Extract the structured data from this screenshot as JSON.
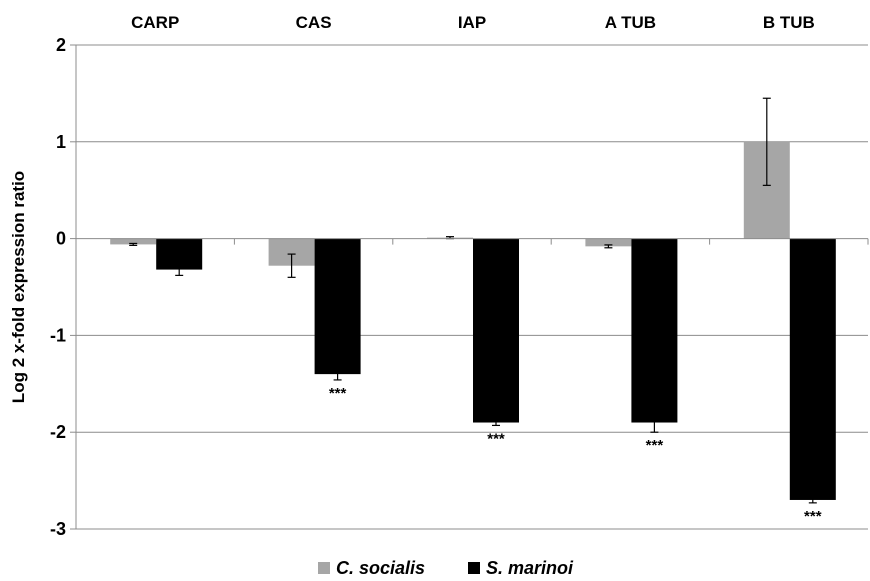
{
  "chart_data": {
    "type": "bar",
    "title": "",
    "xlabel": "",
    "ylabel": "Log 2 x-fold expression ratio",
    "ylim": [
      -3,
      2
    ],
    "yticks": [
      2,
      1,
      0,
      -1,
      -2,
      -3
    ],
    "ytick_labels": [
      "2",
      "1",
      "0",
      "-1",
      "-2",
      "-3"
    ],
    "grid": true,
    "category_axis_position": "top",
    "legend_position": "bottom-center",
    "categories": [
      "CARP",
      "CAS",
      "IAP",
      "A TUB",
      "B TUB"
    ],
    "series": [
      {
        "name": "C. socialis",
        "color": "#a6a6a6",
        "values": [
          -0.06,
          -0.28,
          0.01,
          -0.08,
          1.0
        ],
        "error": [
          0.01,
          0.12,
          0.01,
          0.015,
          0.45
        ]
      },
      {
        "name": "S. marinoi",
        "color": "#000000",
        "values": [
          -0.32,
          -1.4,
          -1.9,
          -1.9,
          -2.7
        ],
        "error": [
          0.06,
          0.06,
          0.03,
          0.1,
          0.03
        ]
      }
    ],
    "annotations": [
      {
        "category": "CAS",
        "series": "S. marinoi",
        "text": "***"
      },
      {
        "category": "IAP",
        "series": "S. marinoi",
        "text": "***"
      },
      {
        "category": "A TUB",
        "series": "S. marinoi",
        "text": "***"
      },
      {
        "category": "B TUB",
        "series": "S. marinoi",
        "text": "***"
      }
    ]
  }
}
